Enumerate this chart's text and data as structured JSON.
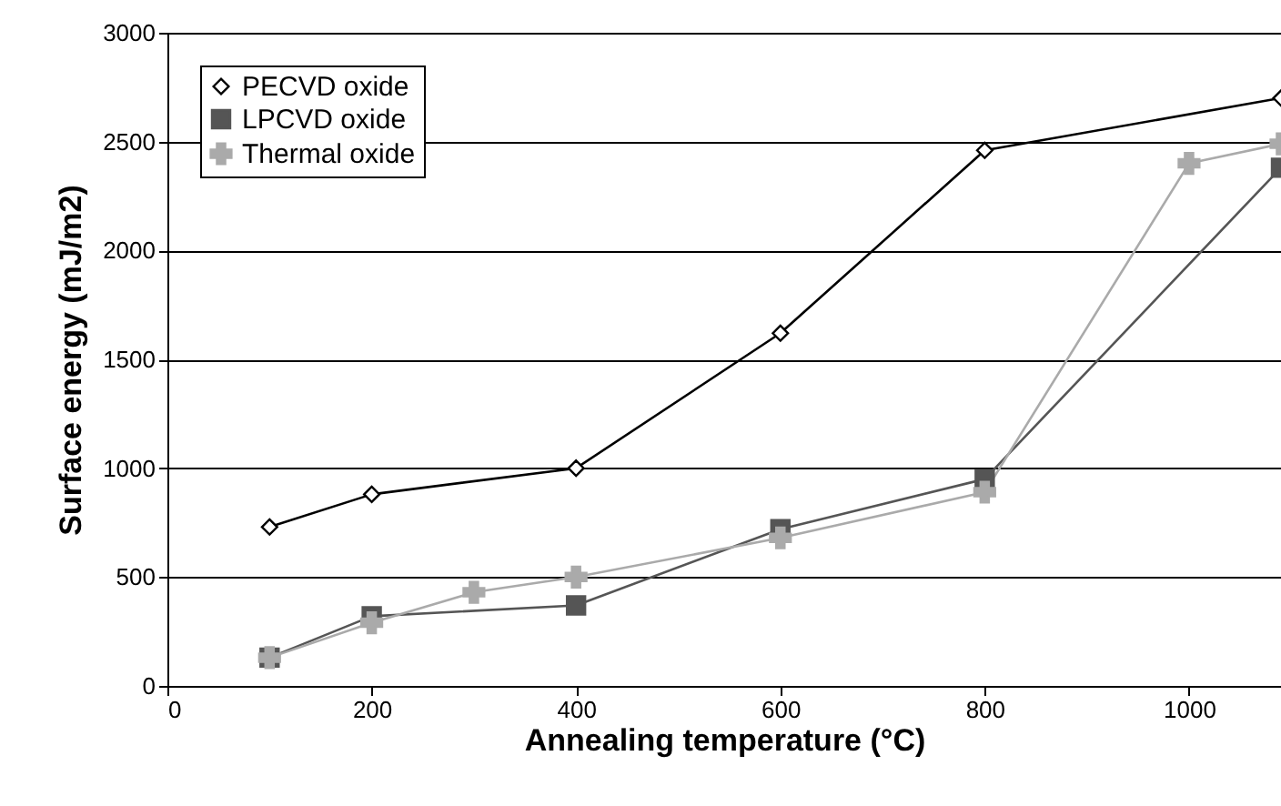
{
  "chart_data": {
    "type": "line",
    "xlabel": "Annealing temperature (°C)",
    "ylabel": "Surface energy (mJ/m2)",
    "xlim": [
      0,
      1090
    ],
    "xticks": [
      0,
      200,
      400,
      600,
      800,
      1000
    ],
    "ylim": [
      0,
      3000
    ],
    "yticks": [
      0,
      500,
      1000,
      1500,
      2000,
      2500,
      3000
    ],
    "grid": "y",
    "legend": "top left",
    "series": [
      {
        "name": "PECVD oxide",
        "color": "#000000",
        "marker": "diamond",
        "x": [
          100,
          200,
          400,
          600,
          800,
          1090
        ],
        "values": [
          730,
          880,
          1000,
          1620,
          2460,
          2700
        ]
      },
      {
        "name": "LPCVD oxide",
        "color": "#555555",
        "marker": "square",
        "x": [
          100,
          200,
          400,
          600,
          800,
          1090
        ],
        "values": [
          130,
          320,
          370,
          720,
          950,
          2380
        ]
      },
      {
        "name": "Thermal oxide",
        "color": "#aaaaaa",
        "marker": "cross",
        "x": [
          100,
          200,
          300,
          400,
          600,
          800,
          1000,
          1090
        ],
        "values": [
          130,
          290,
          430,
          500,
          680,
          890,
          2400,
          2490
        ]
      }
    ]
  }
}
